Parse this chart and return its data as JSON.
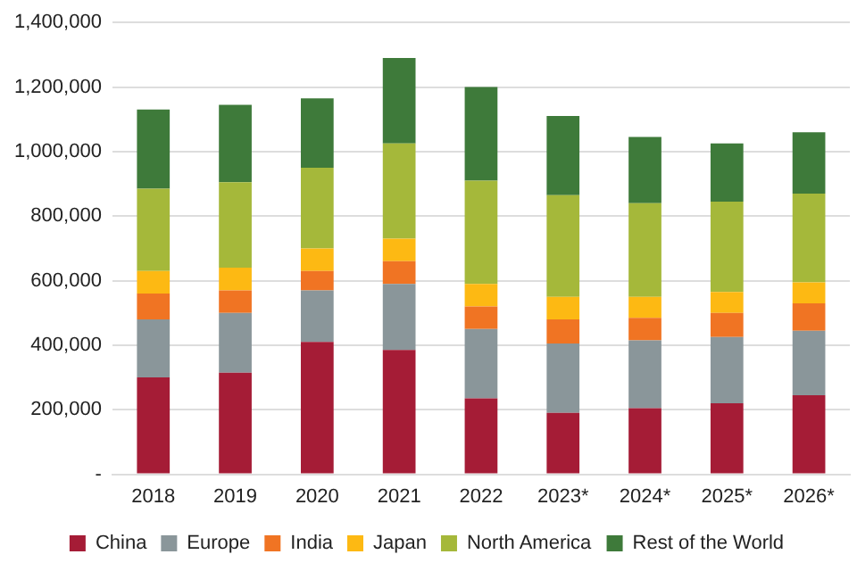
{
  "chart_data": {
    "type": "bar",
    "stacked": true,
    "categories": [
      "2018",
      "2019",
      "2020",
      "2021",
      "2022",
      "2023*",
      "2024*",
      "2025*",
      "2026*"
    ],
    "series": [
      {
        "name": "China",
        "color": "#a51c36",
        "values": [
          300000,
          315000,
          410000,
          385000,
          235000,
          190000,
          205000,
          220000,
          245000
        ]
      },
      {
        "name": "Europe",
        "color": "#8a969a",
        "values": [
          180000,
          185000,
          160000,
          205000,
          215000,
          215000,
          210000,
          205000,
          200000
        ]
      },
      {
        "name": "India",
        "color": "#f07423",
        "values": [
          80000,
          70000,
          60000,
          70000,
          70000,
          75000,
          70000,
          75000,
          85000
        ]
      },
      {
        "name": "Japan",
        "color": "#fdb913",
        "values": [
          70000,
          70000,
          70000,
          70000,
          70000,
          70000,
          65000,
          65000,
          65000
        ]
      },
      {
        "name": "North America",
        "color": "#a5b83a",
        "values": [
          255000,
          265000,
          250000,
          295000,
          320000,
          315000,
          290000,
          280000,
          275000
        ]
      },
      {
        "name": "Rest of the World",
        "color": "#3e7a3a",
        "values": [
          245000,
          240000,
          215000,
          265000,
          290000,
          245000,
          205000,
          180000,
          190000
        ]
      }
    ],
    "ylim": [
      0,
      1400000
    ],
    "yticks": [
      {
        "value": 0,
        "label": "-"
      },
      {
        "value": 200000,
        "label": "200,000"
      },
      {
        "value": 400000,
        "label": "400,000"
      },
      {
        "value": 600000,
        "label": "600,000"
      },
      {
        "value": 800000,
        "label": "800,000"
      },
      {
        "value": 1000000,
        "label": "1,000,000"
      },
      {
        "value": 1200000,
        "label": "1,200,000"
      },
      {
        "value": 1400000,
        "label": "1,400,000"
      }
    ],
    "grid": "y",
    "legend": "bottom"
  }
}
